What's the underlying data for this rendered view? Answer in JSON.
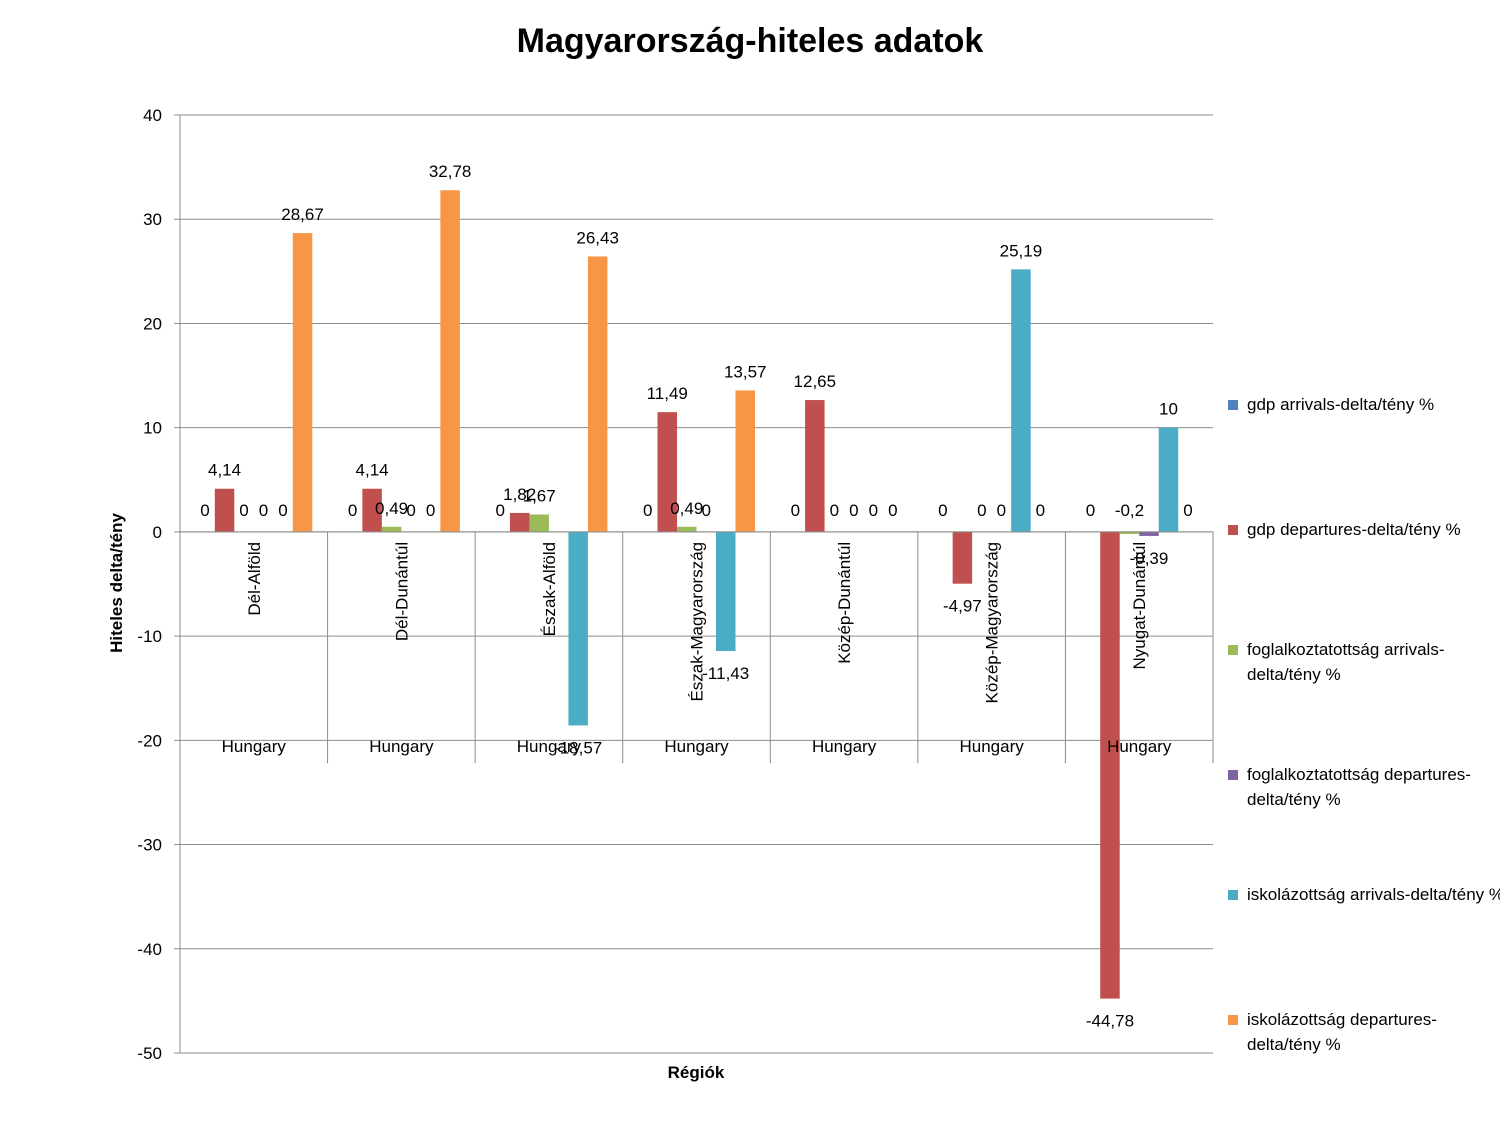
{
  "chart_data": {
    "type": "bar",
    "title": "Magyarország-hiteles adatok",
    "xlabel": "Régiók",
    "ylabel": "Hiteles delta/tény",
    "ylim": [
      -50,
      40
    ],
    "yticks": [
      "-50",
      "-40",
      "-30",
      "-20",
      "-10",
      "0",
      "10",
      "20",
      "30",
      "40"
    ],
    "categories": [
      "Dél-Alföld",
      "Dél-Dunántúl",
      "Észak-Alföld",
      "Észak-Magyarország",
      "Közép-Dunántúl",
      "Közép-Magyarország",
      "Nyugat-Dunántúl"
    ],
    "group_labels": [
      "Hungary",
      "Hungary",
      "Hungary",
      "Hungary",
      "Hungary",
      "Hungary",
      "Hungary"
    ],
    "grid": true,
    "legend_position": "right",
    "series": [
      {
        "name": "gdp arrivals-delta/tény %",
        "color": "#4f81bd",
        "values": [
          0,
          0,
          0,
          0,
          0,
          0,
          0
        ],
        "labels": [
          "0",
          "0",
          "0",
          "0",
          "0",
          "0",
          "0"
        ]
      },
      {
        "name": "gdp departures-delta/tény %",
        "color": "#c0504d",
        "values": [
          4.14,
          4.14,
          1.82,
          11.49,
          12.65,
          -4.97,
          -44.78
        ],
        "labels": [
          "4,14",
          "4,14",
          "1,82",
          "11,49",
          "12,65",
          "-4,97",
          "-44,78"
        ]
      },
      {
        "name": "foglalkoztatottság arrivals-delta/tény %",
        "color": "#9bbb59",
        "values": [
          0,
          0.49,
          1.67,
          0.49,
          0,
          0,
          -0.2
        ],
        "labels": [
          "0",
          "0,49",
          "1,67",
          "0,49",
          "0",
          "0",
          "-0,2"
        ]
      },
      {
        "name": "foglalkoztatottság departures-delta/tény %",
        "color": "#8064a2",
        "values": [
          0,
          0,
          null,
          0,
          0,
          0,
          -0.39
        ],
        "labels": [
          "0",
          "0",
          "",
          "0",
          "0",
          "0",
          "-0,39"
        ]
      },
      {
        "name": "iskolázottság arrivals-delta/tény %",
        "color": "#4bacc6",
        "values": [
          0,
          0,
          -18.57,
          -11.43,
          0,
          25.19,
          10
        ],
        "labels": [
          "0",
          "0",
          "-18,57",
          "-11,43",
          "0",
          "25,19",
          "10"
        ]
      },
      {
        "name": "iskolázottság departures-delta/tény %",
        "color": "#f79646",
        "values": [
          28.67,
          32.78,
          26.43,
          13.57,
          0,
          0,
          0
        ],
        "labels": [
          "28,67",
          "32,78",
          "26,43",
          "13,57",
          "0",
          "0",
          "0"
        ]
      }
    ]
  }
}
